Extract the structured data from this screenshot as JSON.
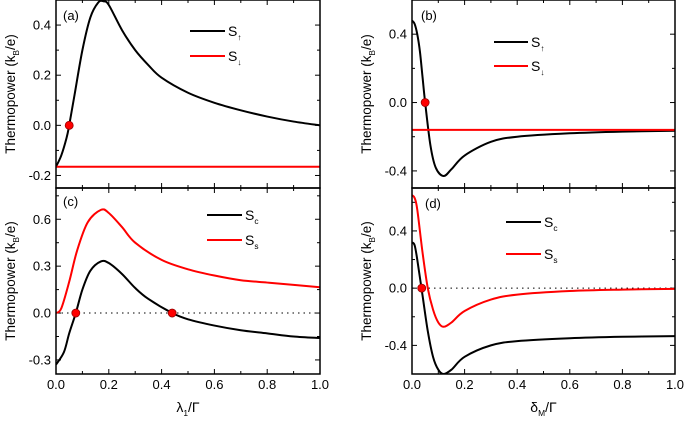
{
  "chart_data": [
    {
      "panel": "(a)",
      "type": "line",
      "xlim": [
        0,
        1
      ],
      "ylim": [
        -0.25,
        0.5
      ],
      "yticks": [
        -0.2,
        0.0,
        0.2,
        0.4
      ],
      "xticks": [
        0,
        0.2,
        0.4,
        0.6,
        0.8,
        1.0
      ],
      "ylabel": {
        "main": "Thermopower (k",
        "sub": "B",
        "tail": "/e)"
      },
      "show_xticklabels": false,
      "zero_line": false,
      "series": [
        {
          "name": "S",
          "sub": "↑",
          "color": "#000000",
          "points": [
            [
              0,
              -0.165
            ],
            [
              0.02,
              -0.12
            ],
            [
              0.04,
              -0.05
            ],
            [
              0.05,
              0
            ],
            [
              0.07,
              0.12
            ],
            [
              0.1,
              0.3
            ],
            [
              0.13,
              0.43
            ],
            [
              0.16,
              0.49
            ],
            [
              0.18,
              0.495
            ],
            [
              0.2,
              0.48
            ],
            [
              0.25,
              0.38
            ],
            [
              0.3,
              0.3
            ],
            [
              0.35,
              0.24
            ],
            [
              0.4,
              0.19
            ],
            [
              0.5,
              0.13
            ],
            [
              0.6,
              0.09
            ],
            [
              0.7,
              0.06
            ],
            [
              0.8,
              0.035
            ],
            [
              0.9,
              0.015
            ],
            [
              1.0,
              0.0
            ]
          ]
        },
        {
          "name": "S",
          "sub": "↓",
          "color": "#ff0000",
          "points": [
            [
              0,
              -0.165
            ],
            [
              1,
              -0.165
            ]
          ]
        }
      ],
      "markers": [
        [
          0.05,
          0
        ]
      ]
    },
    {
      "panel": "(b)",
      "type": "line",
      "xlim": [
        0,
        1
      ],
      "ylim": [
        -0.5,
        0.6
      ],
      "yticks": [
        -0.4,
        0.0,
        0.4
      ],
      "xticks": [
        0,
        0.2,
        0.4,
        0.6,
        0.8,
        1.0
      ],
      "ylabel": {
        "main": "Thermopower (k",
        "sub": "B",
        "tail": "/e)"
      },
      "show_xticklabels": false,
      "zero_line": false,
      "series": [
        {
          "name": "S",
          "sub": "↑",
          "color": "#000000",
          "points": [
            [
              0,
              0.48
            ],
            [
              0.01,
              0.46
            ],
            [
              0.02,
              0.4
            ],
            [
              0.03,
              0.3
            ],
            [
              0.04,
              0.15
            ],
            [
              0.05,
              0
            ],
            [
              0.07,
              -0.25
            ],
            [
              0.09,
              -0.38
            ],
            [
              0.12,
              -0.43
            ],
            [
              0.15,
              -0.39
            ],
            [
              0.2,
              -0.31
            ],
            [
              0.3,
              -0.23
            ],
            [
              0.4,
              -0.2
            ],
            [
              0.6,
              -0.18
            ],
            [
              0.8,
              -0.17
            ],
            [
              1,
              -0.165
            ]
          ]
        },
        {
          "name": "S",
          "sub": "↓",
          "color": "#ff0000",
          "points": [
            [
              0,
              -0.16
            ],
            [
              1,
              -0.16
            ]
          ]
        }
      ],
      "markers": [
        [
          0.05,
          0
        ]
      ]
    },
    {
      "panel": "(c)",
      "type": "line",
      "xlim": [
        0,
        1
      ],
      "ylim": [
        -0.39,
        0.8
      ],
      "yticks": [
        -0.3,
        0.0,
        0.3,
        0.6
      ],
      "xticks": [
        0,
        0.2,
        0.4,
        0.6,
        0.8,
        1.0
      ],
      "ylabel": {
        "main": "Thermopower (k",
        "sub": "B",
        "tail": "/e)"
      },
      "show_xticklabels": true,
      "zero_line": true,
      "xlabel": {
        "main": "λ",
        "sub": "1",
        "tail": "/Γ"
      },
      "series": [
        {
          "name": "S",
          "sub": "c",
          "color": "#000000",
          "points": [
            [
              0,
              -0.33
            ],
            [
              0.03,
              -0.25
            ],
            [
              0.05,
              -0.13
            ],
            [
              0.075,
              0
            ],
            [
              0.1,
              0.15
            ],
            [
              0.13,
              0.27
            ],
            [
              0.17,
              0.33
            ],
            [
              0.2,
              0.32
            ],
            [
              0.25,
              0.25
            ],
            [
              0.3,
              0.16
            ],
            [
              0.35,
              0.09
            ],
            [
              0.44,
              0
            ],
            [
              0.5,
              -0.04
            ],
            [
              0.6,
              -0.08
            ],
            [
              0.7,
              -0.11
            ],
            [
              0.8,
              -0.13
            ],
            [
              0.9,
              -0.15
            ],
            [
              1,
              -0.16
            ]
          ]
        },
        {
          "name": "S",
          "sub": "s",
          "color": "#ff0000",
          "points": [
            [
              0,
              0
            ],
            [
              0.02,
              0.03
            ],
            [
              0.05,
              0.2
            ],
            [
              0.08,
              0.4
            ],
            [
              0.12,
              0.58
            ],
            [
              0.17,
              0.66
            ],
            [
              0.2,
              0.64
            ],
            [
              0.25,
              0.55
            ],
            [
              0.3,
              0.45
            ],
            [
              0.4,
              0.34
            ],
            [
              0.5,
              0.28
            ],
            [
              0.6,
              0.24
            ],
            [
              0.7,
              0.21
            ],
            [
              0.8,
              0.195
            ],
            [
              0.9,
              0.18
            ],
            [
              1,
              0.165
            ]
          ]
        }
      ],
      "markers": [
        [
          0.075,
          0
        ],
        [
          0.44,
          0
        ]
      ]
    },
    {
      "panel": "(d)",
      "type": "line",
      "xlim": [
        0,
        1
      ],
      "ylim": [
        -0.6,
        0.7
      ],
      "yticks": [
        -0.4,
        0.0,
        0.4
      ],
      "xticks": [
        0,
        0.2,
        0.4,
        0.6,
        0.8,
        1.0
      ],
      "ylabel": {
        "main": "Thermopower (k",
        "sub": "B",
        "tail": "/e)"
      },
      "show_xticklabels": true,
      "zero_line": true,
      "xlabel": {
        "main": "δ",
        "sub": "M",
        "tail": "/Γ"
      },
      "series": [
        {
          "name": "S",
          "sub": "c",
          "color": "#000000",
          "points": [
            [
              0,
              0.32
            ],
            [
              0.01,
              0.3
            ],
            [
              0.02,
              0.2
            ],
            [
              0.04,
              -0.05
            ],
            [
              0.06,
              -0.3
            ],
            [
              0.08,
              -0.48
            ],
            [
              0.1,
              -0.57
            ],
            [
              0.12,
              -0.6
            ],
            [
              0.15,
              -0.57
            ],
            [
              0.2,
              -0.48
            ],
            [
              0.3,
              -0.4
            ],
            [
              0.4,
              -0.37
            ],
            [
              0.6,
              -0.35
            ],
            [
              0.8,
              -0.34
            ],
            [
              1,
              -0.335
            ]
          ]
        },
        {
          "name": "S",
          "sub": "s",
          "color": "#ff0000",
          "points": [
            [
              0,
              0.65
            ],
            [
              0.01,
              0.63
            ],
            [
              0.02,
              0.55
            ],
            [
              0.04,
              0.25
            ],
            [
              0.06,
              0.0
            ],
            [
              0.08,
              -0.15
            ],
            [
              0.1,
              -0.24
            ],
            [
              0.12,
              -0.27
            ],
            [
              0.15,
              -0.24
            ],
            [
              0.2,
              -0.16
            ],
            [
              0.3,
              -0.08
            ],
            [
              0.4,
              -0.045
            ],
            [
              0.6,
              -0.02
            ],
            [
              0.8,
              -0.01
            ],
            [
              1,
              -0.005
            ]
          ]
        }
      ],
      "markers": [
        [
          0.037,
          0
        ]
      ]
    }
  ]
}
